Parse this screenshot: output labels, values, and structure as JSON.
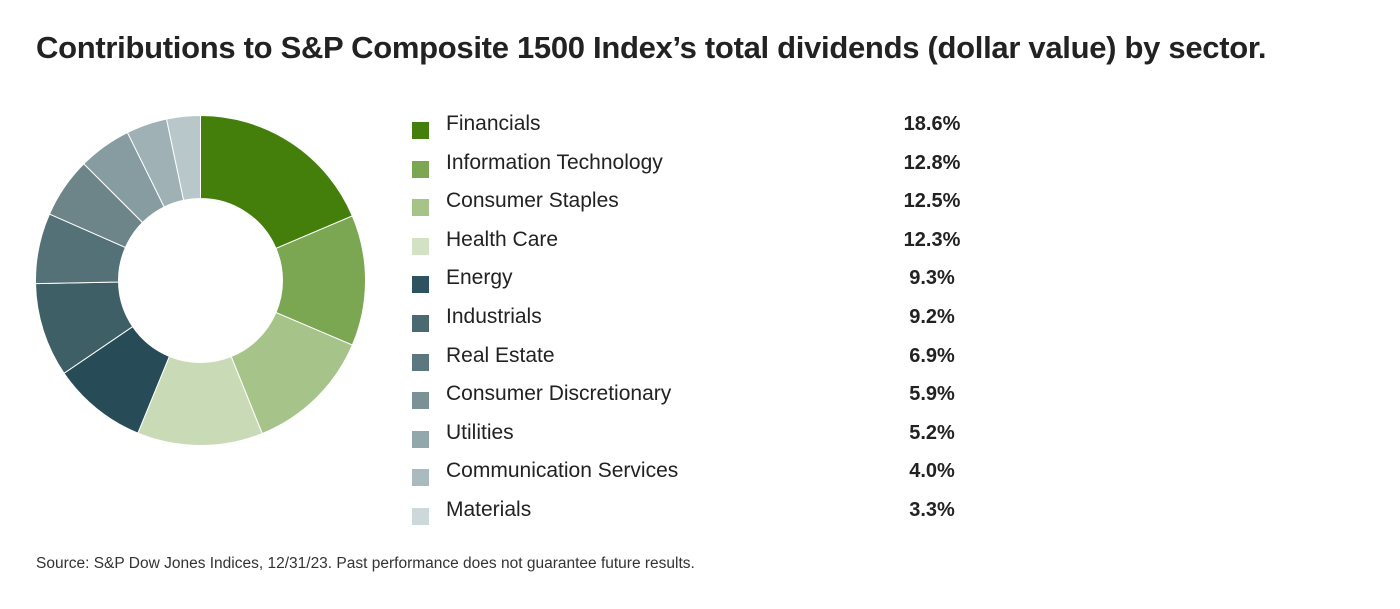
{
  "chart_data": {
    "type": "pie",
    "title": "Contributions to S&P Composite 1500 Index’s total dividends (dollar value) by sector.",
    "categories": [
      "Financials",
      "Information Technology",
      "Consumer Staples",
      "Health Care",
      "Energy",
      "Industrials",
      "Real Estate",
      "Consumer Discretionary",
      "Utilities",
      "Communication Services",
      "Materials"
    ],
    "values": [
      18.6,
      12.8,
      12.5,
      12.3,
      9.3,
      9.2,
      6.9,
      5.9,
      5.2,
      4.0,
      3.3
    ],
    "value_labels": [
      "18.6%",
      "12.8%",
      "12.5%",
      "12.3%",
      "9.3%",
      "9.2%",
      "6.9%",
      "5.9%",
      "5.2%",
      "4.0%",
      "3.3%"
    ],
    "colors": [
      "#437f0a",
      "#7ba652",
      "#a6c389",
      "#c9dbb6",
      "#284c57",
      "#3f5f67",
      "#557178",
      "#6d8489",
      "#869ca0",
      "#9fb1b5",
      "#b8c7ca"
    ],
    "legend_colors": [
      "#437f0a",
      "#7ba652",
      "#a6c389",
      "#d3e2c3",
      "#2e5360",
      "#4a6970",
      "#5b7880",
      "#7a9196",
      "#93a8ab",
      "#aabbbf",
      "#cdd8da"
    ],
    "legend": "right"
  },
  "source": "Source: S&P Dow Jones Indices, 12/31/23. Past performance does not guarantee future results."
}
